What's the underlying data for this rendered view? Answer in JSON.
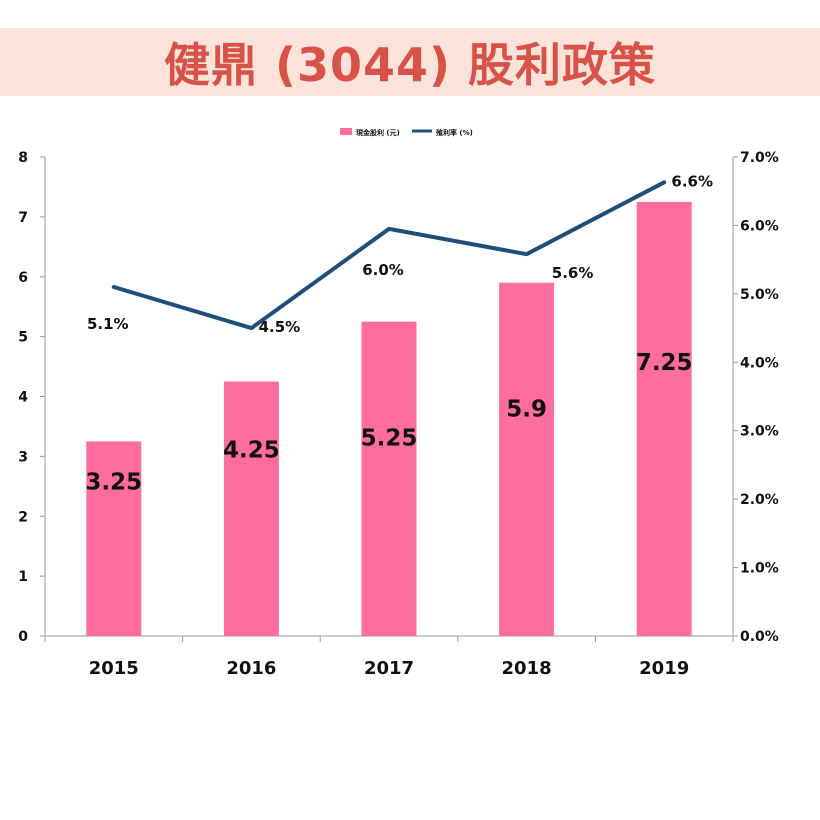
{
  "title": "健鼎 (3044) 股利政策",
  "colors": {
    "banner_bg": "#fde3d9",
    "title": "#d9524a",
    "bar": "#ff6d9c",
    "line": "#1f4e7a"
  },
  "chart_data": {
    "type": "bar",
    "categories": [
      "2015",
      "2016",
      "2017",
      "2018",
      "2019"
    ],
    "series": [
      {
        "name": "現金股利 (元)",
        "type": "bar",
        "axis": "left",
        "values": [
          3.25,
          4.25,
          5.25,
          5.9,
          7.25
        ],
        "labels": [
          "3.25",
          "4.25",
          "5.25",
          "5.9",
          "7.25"
        ]
      },
      {
        "name": "殖利率 (%)",
        "type": "line",
        "axis": "right",
        "values": [
          5.1,
          4.5,
          5.95,
          5.58,
          6.63
        ],
        "labels": [
          "5.1%",
          "4.5%",
          "6.0%",
          "5.6%",
          "6.6%"
        ]
      }
    ],
    "y_left": {
      "min": 0,
      "max": 8,
      "ticks": [
        "0",
        "1",
        "2",
        "3",
        "4",
        "5",
        "6",
        "7",
        "8"
      ]
    },
    "y_right": {
      "min": 0,
      "max": 7,
      "ticks": [
        "0.0%",
        "1.0%",
        "2.0%",
        "3.0%",
        "4.0%",
        "5.0%",
        "6.0%",
        "7.0%"
      ]
    },
    "legend": "top-center",
    "grid": false
  }
}
